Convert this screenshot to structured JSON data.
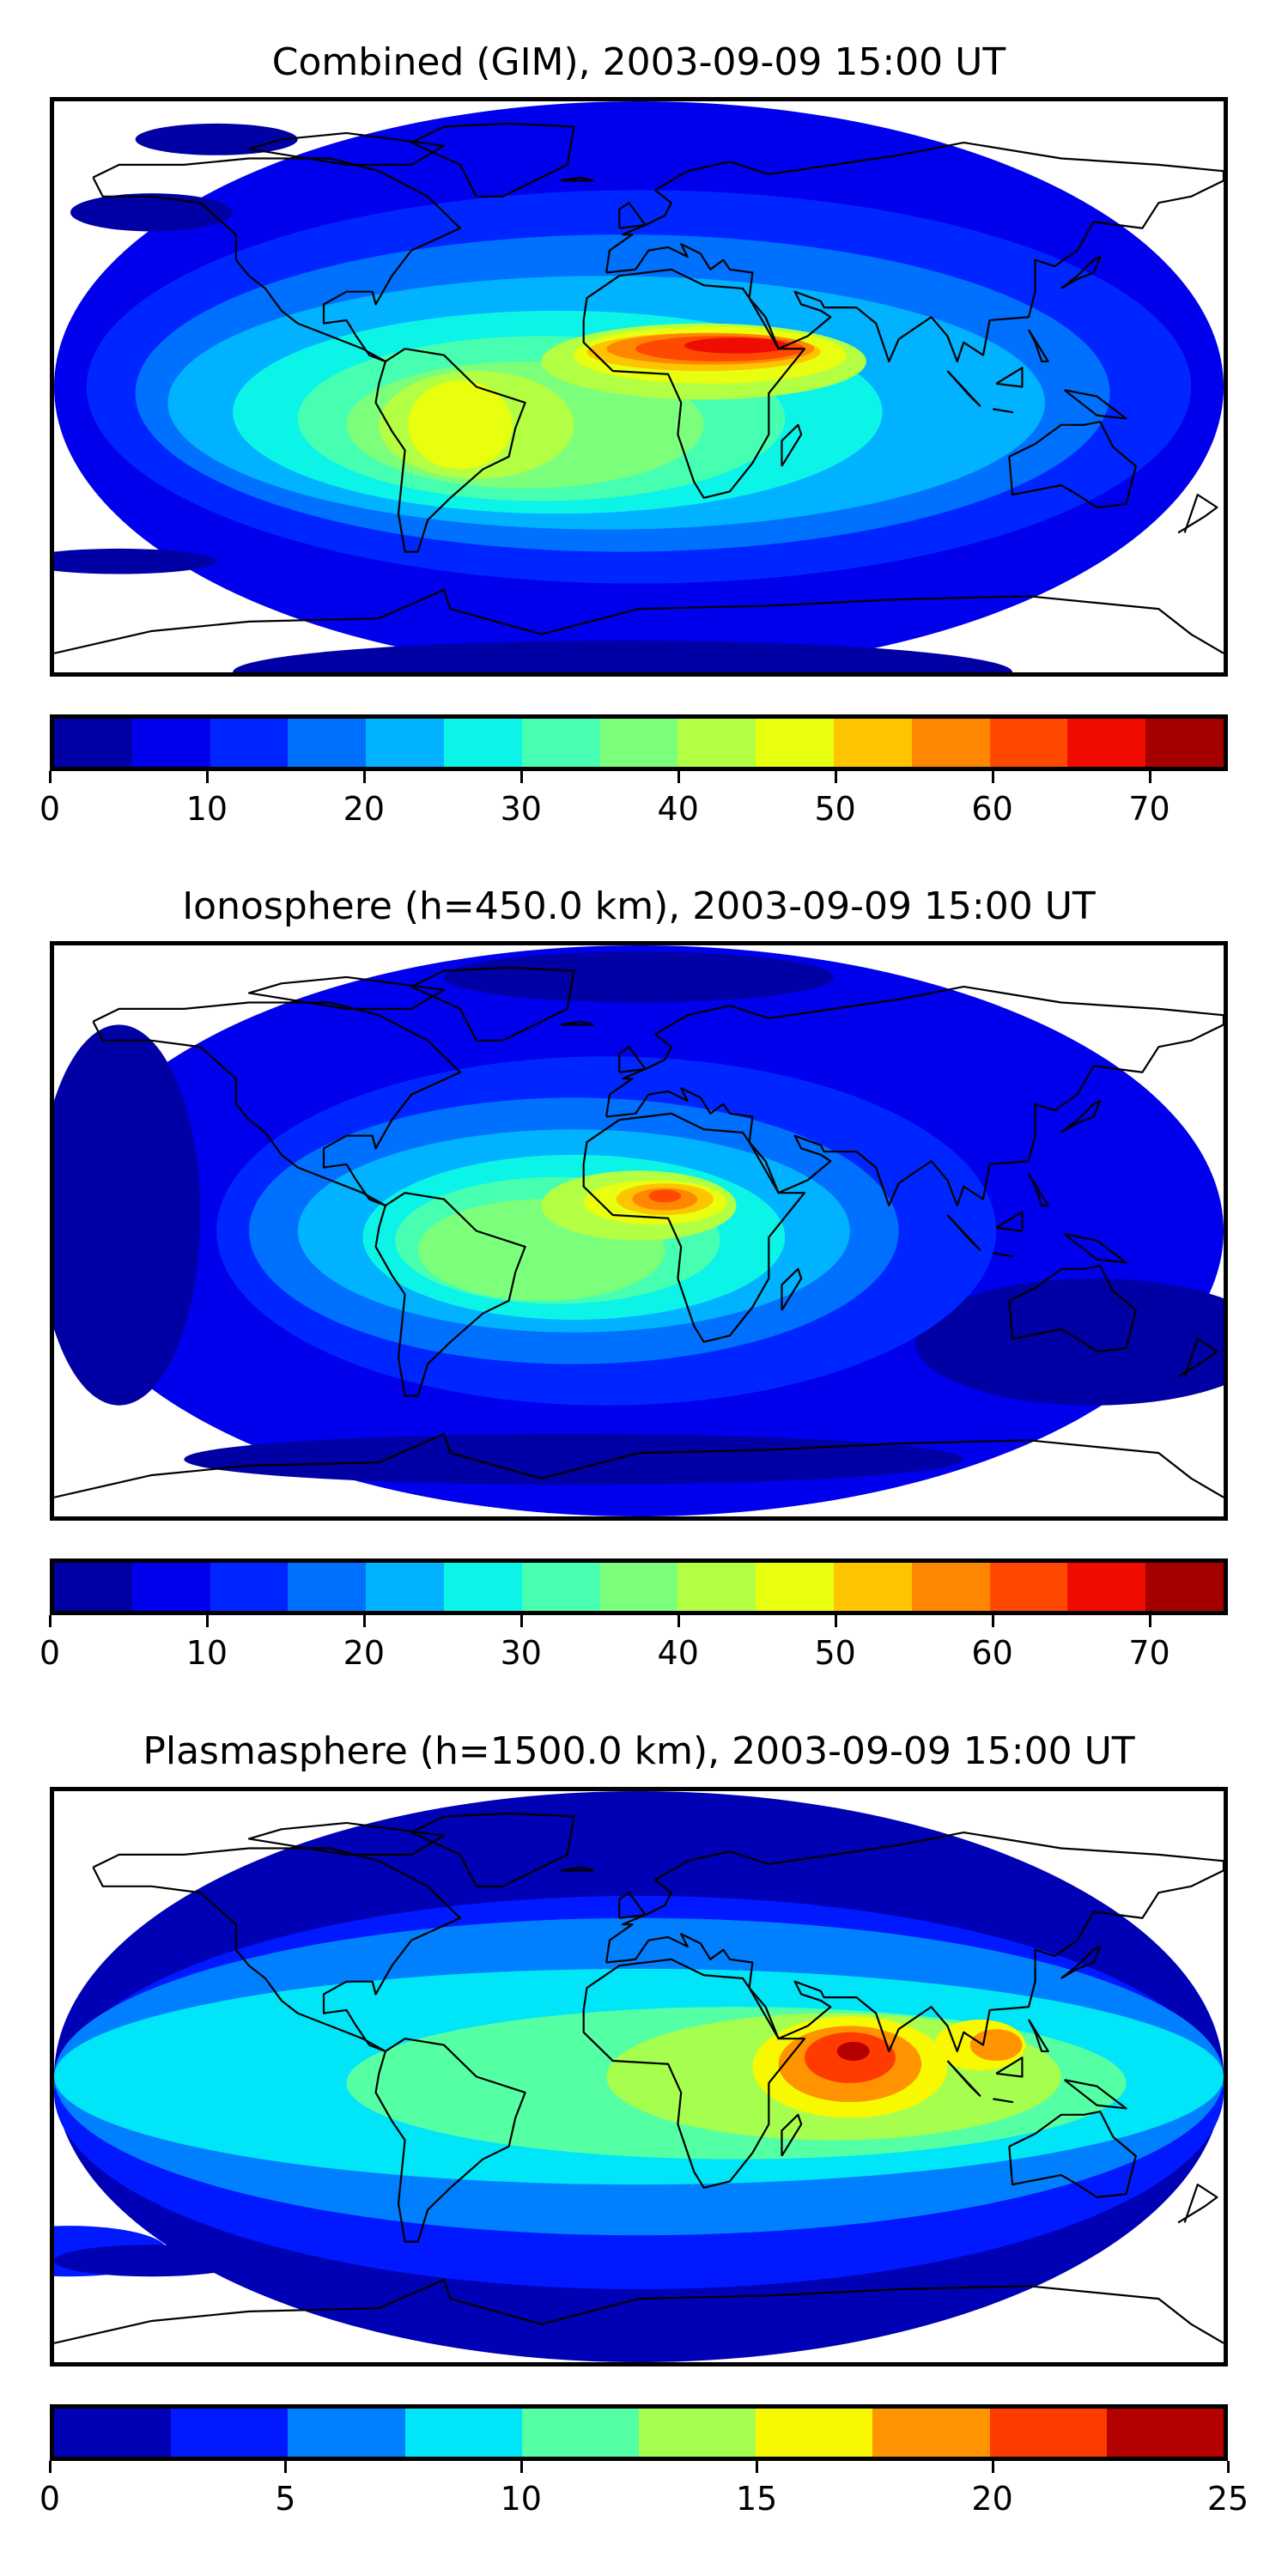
{
  "chart_data": [
    {
      "type": "heatmap",
      "title": "Combined (GIM), 2003-09-09 15:00 UT",
      "projection": "global lon/lat map with coastlines",
      "levels": [
        0,
        5,
        10,
        15,
        20,
        25,
        30,
        35,
        40,
        45,
        50,
        55,
        60,
        65,
        70,
        75
      ],
      "colorbar_ticks": [
        "0",
        "10",
        "20",
        "30",
        "40",
        "50",
        "60",
        "70"
      ],
      "colorbar_tick_values": [
        0,
        10,
        20,
        30,
        40,
        50,
        60,
        70
      ],
      "colorbar_range": [
        0,
        75
      ],
      "colors": [
        "#0000a4",
        "#0000ed",
        "#0026ff",
        "#0070ff",
        "#00b2ff",
        "#0cf4e8",
        "#46ffb1",
        "#7cff7a",
        "#b3ff43",
        "#e8ff0f",
        "#ffc400",
        "#ff8600",
        "#ff4800",
        "#f00c00",
        "#a40000"
      ],
      "peak_region": "North-central Africa",
      "peak_bin": [
        65,
        70
      ]
    },
    {
      "type": "heatmap",
      "title": "Ionosphere  (h=450.0 km), 2003-09-09 15:00 UT",
      "projection": "global lon/lat map with coastlines",
      "levels": [
        0,
        5,
        10,
        15,
        20,
        25,
        30,
        35,
        40,
        45,
        50,
        55,
        60,
        65,
        70,
        75
      ],
      "colorbar_ticks": [
        "0",
        "10",
        "20",
        "30",
        "40",
        "50",
        "60",
        "70"
      ],
      "colorbar_tick_values": [
        0,
        10,
        20,
        30,
        40,
        50,
        60,
        70
      ],
      "colorbar_range": [
        0,
        75
      ],
      "colors": [
        "#0000a4",
        "#0000ed",
        "#0026ff",
        "#0070ff",
        "#00b2ff",
        "#0cf4e8",
        "#46ffb1",
        "#7cff7a",
        "#b3ff43",
        "#e8ff0f",
        "#ffc400",
        "#ff8600",
        "#ff4800",
        "#f00c00",
        "#a40000"
      ],
      "peak_region": "West Africa",
      "peak_bin": [
        55,
        60
      ]
    },
    {
      "type": "heatmap",
      "title": "Plasmasphere (h=1500.0 km), 2003-09-09 15:00 UT",
      "projection": "global lon/lat map with coastlines",
      "levels": [
        0,
        2.5,
        5,
        7.5,
        10,
        12.5,
        15,
        17.5,
        20,
        22.5,
        25
      ],
      "colorbar_ticks": [
        "0",
        "5",
        "10",
        "15",
        "20",
        "25"
      ],
      "colorbar_tick_values": [
        0,
        5,
        10,
        15,
        20,
        25
      ],
      "colorbar_range": [
        0,
        25
      ],
      "colors": [
        "#0000b5",
        "#0019ff",
        "#0080ff",
        "#00e5f8",
        "#55ffa3",
        "#a6ff4f",
        "#f8f800",
        "#ff9400",
        "#ff3b00",
        "#b40000"
      ],
      "peak_region": "Arabian Sea / East Africa",
      "peak_bin": [
        22.5,
        25
      ]
    }
  ]
}
